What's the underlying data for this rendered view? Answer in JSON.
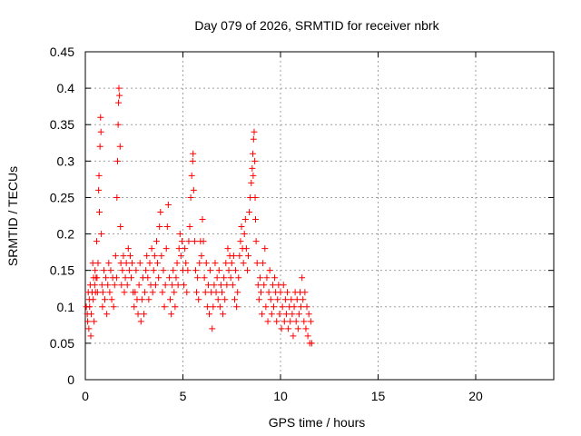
{
  "chart_data": {
    "type": "scatter",
    "title": "Day 079 of 2026, SRMTID for receiver nbrk",
    "xlabel": "GPS time / hours",
    "ylabel": "SRMTID / TECUs",
    "xlim": [
      0,
      24
    ],
    "ylim": [
      0,
      0.45
    ],
    "xticks": [
      0,
      5,
      10,
      15,
      20
    ],
    "yticks": [
      0,
      0.05,
      0.1,
      0.15,
      0.2,
      0.25,
      0.3,
      0.35,
      0.4,
      0.45
    ],
    "xtick_labels": [
      "0",
      "5",
      "10",
      "15",
      "20"
    ],
    "ytick_labels": [
      "0",
      "0.05",
      "0.1",
      "0.15",
      "0.2",
      "0.25",
      "0.3",
      "0.35",
      "0.4",
      "0.45"
    ],
    "grid": true,
    "marker": "+",
    "color": "#ff0000",
    "series": [
      {
        "name": "SRMTID",
        "points": [
          [
            0.05,
            0.1
          ],
          [
            0.1,
            0.09
          ],
          [
            0.12,
            0.08
          ],
          [
            0.15,
            0.12
          ],
          [
            0.18,
            0.07
          ],
          [
            0.2,
            0.11
          ],
          [
            0.22,
            0.1
          ],
          [
            0.25,
            0.13
          ],
          [
            0.28,
            0.06
          ],
          [
            0.3,
            0.09
          ],
          [
            0.35,
            0.12
          ],
          [
            0.38,
            0.16
          ],
          [
            0.4,
            0.11
          ],
          [
            0.42,
            0.14
          ],
          [
            0.45,
            0.08
          ],
          [
            0.48,
            0.13
          ],
          [
            0.5,
            0.15
          ],
          [
            0.52,
            0.12
          ],
          [
            0.55,
            0.14
          ],
          [
            0.58,
            0.19
          ],
          [
            0.6,
            0.14
          ],
          [
            0.62,
            0.12
          ],
          [
            0.65,
            0.16
          ],
          [
            0.68,
            0.26
          ],
          [
            0.7,
            0.28
          ],
          [
            0.72,
            0.23
          ],
          [
            0.75,
            0.32
          ],
          [
            0.78,
            0.36
          ],
          [
            0.8,
            0.34
          ],
          [
            0.82,
            0.2
          ],
          [
            0.85,
            0.13
          ],
          [
            0.88,
            0.1
          ],
          [
            0.9,
            0.12
          ],
          [
            0.95,
            0.15
          ],
          [
            1.0,
            0.11
          ],
          [
            1.05,
            0.14
          ],
          [
            1.1,
            0.09
          ],
          [
            1.15,
            0.13
          ],
          [
            1.2,
            0.16
          ],
          [
            1.25,
            0.12
          ],
          [
            1.3,
            0.15
          ],
          [
            1.35,
            0.11
          ],
          [
            1.4,
            0.14
          ],
          [
            1.45,
            0.1
          ],
          [
            1.5,
            0.13
          ],
          [
            1.55,
            0.17
          ],
          [
            1.6,
            0.14
          ],
          [
            1.62,
            0.25
          ],
          [
            1.65,
            0.3
          ],
          [
            1.68,
            0.35
          ],
          [
            1.7,
            0.38
          ],
          [
            1.72,
            0.4
          ],
          [
            1.75,
            0.39
          ],
          [
            1.78,
            0.32
          ],
          [
            1.8,
            0.21
          ],
          [
            1.82,
            0.16
          ],
          [
            1.85,
            0.13
          ],
          [
            1.9,
            0.15
          ],
          [
            1.95,
            0.17
          ],
          [
            2.0,
            0.12
          ],
          [
            2.05,
            0.14
          ],
          [
            2.1,
            0.16
          ],
          [
            2.15,
            0.13
          ],
          [
            2.2,
            0.18
          ],
          [
            2.25,
            0.15
          ],
          [
            2.3,
            0.17
          ],
          [
            2.35,
            0.14
          ],
          [
            2.4,
            0.16
          ],
          [
            2.45,
            0.12
          ],
          [
            2.5,
            0.1
          ],
          [
            2.55,
            0.12
          ],
          [
            2.6,
            0.15
          ],
          [
            2.65,
            0.11
          ],
          [
            2.7,
            0.09
          ],
          [
            2.75,
            0.13
          ],
          [
            2.8,
            0.16
          ],
          [
            2.85,
            0.08
          ],
          [
            2.9,
            0.11
          ],
          [
            2.95,
            0.14
          ],
          [
            3.0,
            0.09
          ],
          [
            3.05,
            0.12
          ],
          [
            3.1,
            0.15
          ],
          [
            3.15,
            0.17
          ],
          [
            3.2,
            0.14
          ],
          [
            3.25,
            0.11
          ],
          [
            3.3,
            0.16
          ],
          [
            3.35,
            0.13
          ],
          [
            3.4,
            0.18
          ],
          [
            3.45,
            0.12
          ],
          [
            3.5,
            0.15
          ],
          [
            3.55,
            0.17
          ],
          [
            3.6,
            0.13
          ],
          [
            3.65,
            0.19
          ],
          [
            3.7,
            0.16
          ],
          [
            3.75,
            0.14
          ],
          [
            3.8,
            0.21
          ],
          [
            3.85,
            0.23
          ],
          [
            3.9,
            0.17
          ],
          [
            3.95,
            0.12
          ],
          [
            4.0,
            0.15
          ],
          [
            4.05,
            0.1
          ],
          [
            4.1,
            0.13
          ],
          [
            4.15,
            0.18
          ],
          [
            4.2,
            0.21
          ],
          [
            4.25,
            0.24
          ],
          [
            4.3,
            0.14
          ],
          [
            4.35,
            0.11
          ],
          [
            4.4,
            0.09
          ],
          [
            4.45,
            0.13
          ],
          [
            4.5,
            0.15
          ],
          [
            4.55,
            0.12
          ],
          [
            4.6,
            0.1
          ],
          [
            4.65,
            0.14
          ],
          [
            4.7,
            0.16
          ],
          [
            4.75,
            0.13
          ],
          [
            4.8,
            0.18
          ],
          [
            4.85,
            0.2
          ],
          [
            4.9,
            0.17
          ],
          [
            4.95,
            0.19
          ],
          [
            5.0,
            0.15
          ],
          [
            5.05,
            0.13
          ],
          [
            5.1,
            0.18
          ],
          [
            5.15,
            0.16
          ],
          [
            5.2,
            0.12
          ],
          [
            5.25,
            0.15
          ],
          [
            5.3,
            0.19
          ],
          [
            5.35,
            0.21
          ],
          [
            5.4,
            0.25
          ],
          [
            5.45,
            0.28
          ],
          [
            5.5,
            0.3
          ],
          [
            5.52,
            0.31
          ],
          [
            5.55,
            0.26
          ],
          [
            5.6,
            0.19
          ],
          [
            5.65,
            0.15
          ],
          [
            5.7,
            0.12
          ],
          [
            5.75,
            0.14
          ],
          [
            5.8,
            0.11
          ],
          [
            5.85,
            0.16
          ],
          [
            5.9,
            0.19
          ],
          [
            5.95,
            0.17
          ],
          [
            6.0,
            0.22
          ],
          [
            6.05,
            0.19
          ],
          [
            6.1,
            0.14
          ],
          [
            6.15,
            0.12
          ],
          [
            6.2,
            0.16
          ],
          [
            6.25,
            0.1
          ],
          [
            6.3,
            0.13
          ],
          [
            6.35,
            0.09
          ],
          [
            6.4,
            0.15
          ],
          [
            6.45,
            0.12
          ],
          [
            6.5,
            0.07
          ],
          [
            6.55,
            0.1
          ],
          [
            6.6,
            0.13
          ],
          [
            6.65,
            0.16
          ],
          [
            6.7,
            0.12
          ],
          [
            6.75,
            0.14
          ],
          [
            6.8,
            0.11
          ],
          [
            6.85,
            0.15
          ],
          [
            6.9,
            0.1
          ],
          [
            6.95,
            0.13
          ],
          [
            7.0,
            0.12
          ],
          [
            7.05,
            0.09
          ],
          [
            7.1,
            0.14
          ],
          [
            7.15,
            0.11
          ],
          [
            7.2,
            0.16
          ],
          [
            7.25,
            0.13
          ],
          [
            7.3,
            0.18
          ],
          [
            7.35,
            0.15
          ],
          [
            7.4,
            0.17
          ],
          [
            7.45,
            0.14
          ],
          [
            7.5,
            0.16
          ],
          [
            7.55,
            0.13
          ],
          [
            7.6,
            0.17
          ],
          [
            7.65,
            0.11
          ],
          [
            7.7,
            0.15
          ],
          [
            7.75,
            0.1
          ],
          [
            7.8,
            0.12
          ],
          [
            7.85,
            0.14
          ],
          [
            7.9,
            0.17
          ],
          [
            7.95,
            0.19
          ],
          [
            8.0,
            0.21
          ],
          [
            8.05,
            0.18
          ],
          [
            8.1,
            0.16
          ],
          [
            8.15,
            0.2
          ],
          [
            8.2,
            0.22
          ],
          [
            8.25,
            0.18
          ],
          [
            8.3,
            0.15
          ],
          [
            8.35,
            0.17
          ],
          [
            8.4,
            0.23
          ],
          [
            8.45,
            0.25
          ],
          [
            8.5,
            0.27
          ],
          [
            8.55,
            0.29
          ],
          [
            8.58,
            0.31
          ],
          [
            8.6,
            0.28
          ],
          [
            8.62,
            0.33
          ],
          [
            8.65,
            0.34
          ],
          [
            8.68,
            0.3
          ],
          [
            8.7,
            0.25
          ],
          [
            8.72,
            0.22
          ],
          [
            8.75,
            0.19
          ],
          [
            8.8,
            0.16
          ],
          [
            8.85,
            0.13
          ],
          [
            8.9,
            0.11
          ],
          [
            8.95,
            0.14
          ],
          [
            9.0,
            0.12
          ],
          [
            9.05,
            0.09
          ],
          [
            9.1,
            0.16
          ],
          [
            9.15,
            0.13
          ],
          [
            9.2,
            0.18
          ],
          [
            9.25,
            0.1
          ],
          [
            9.3,
            0.14
          ],
          [
            9.35,
            0.08
          ],
          [
            9.4,
            0.12
          ],
          [
            9.45,
            0.15
          ],
          [
            9.5,
            0.11
          ],
          [
            9.55,
            0.09
          ],
          [
            9.6,
            0.13
          ],
          [
            9.65,
            0.1
          ],
          [
            9.7,
            0.14
          ],
          [
            9.75,
            0.12
          ],
          [
            9.8,
            0.08
          ],
          [
            9.85,
            0.11
          ],
          [
            9.9,
            0.13
          ],
          [
            9.95,
            0.09
          ],
          [
            10.0,
            0.12
          ],
          [
            10.05,
            0.07
          ],
          [
            10.1,
            0.1
          ],
          [
            10.15,
            0.13
          ],
          [
            10.2,
            0.08
          ],
          [
            10.25,
            0.11
          ],
          [
            10.3,
            0.09
          ],
          [
            10.35,
            0.12
          ],
          [
            10.4,
            0.07
          ],
          [
            10.45,
            0.1
          ],
          [
            10.5,
            0.08
          ],
          [
            10.55,
            0.11
          ],
          [
            10.6,
            0.09
          ],
          [
            10.65,
            0.06
          ],
          [
            10.7,
            0.1
          ],
          [
            10.75,
            0.12
          ],
          [
            10.8,
            0.08
          ],
          [
            10.85,
            0.11
          ],
          [
            10.9,
            0.07
          ],
          [
            10.95,
            0.09
          ],
          [
            11.0,
            0.12
          ],
          [
            11.05,
            0.1
          ],
          [
            11.1,
            0.14
          ],
          [
            11.15,
            0.11
          ],
          [
            11.2,
            0.08
          ],
          [
            11.25,
            0.12
          ],
          [
            11.3,
            0.07
          ],
          [
            11.35,
            0.1
          ],
          [
            11.4,
            0.06
          ],
          [
            11.45,
            0.09
          ],
          [
            11.5,
            0.05
          ],
          [
            11.55,
            0.08
          ],
          [
            11.6,
            0.05
          ]
        ]
      }
    ]
  }
}
